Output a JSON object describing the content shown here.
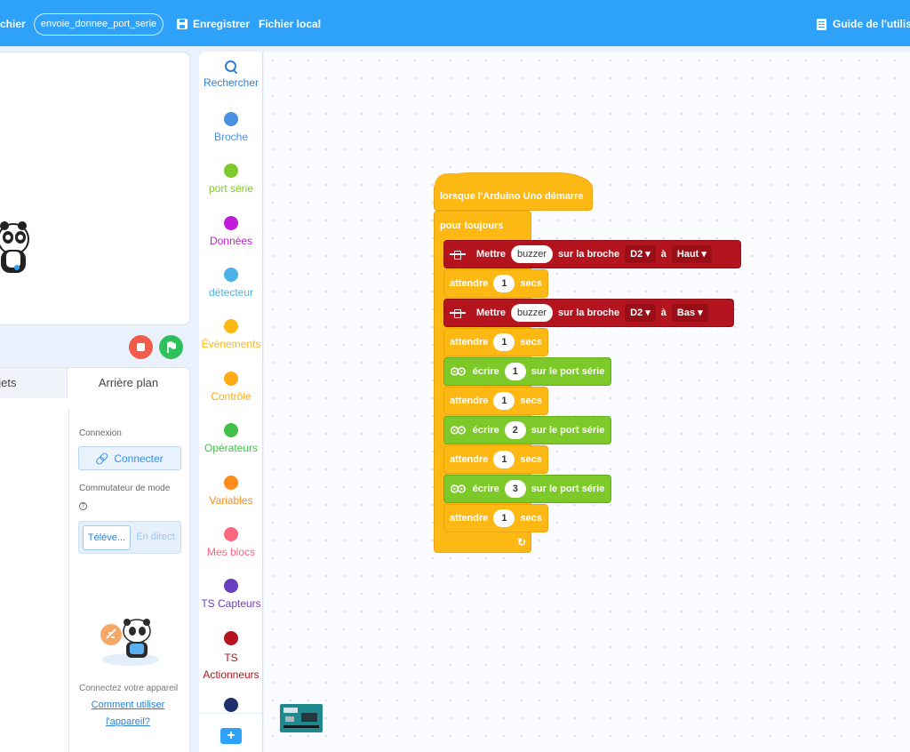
{
  "topbar": {
    "file_menu": "chier",
    "project_name": "envoie_donnee_port_serie",
    "save_label": "Enregistrer",
    "local_file_label": "Fichier local",
    "guide_label": "Guide de l'utilis"
  },
  "tabs": {
    "sprites_label": "bjets",
    "backdrop_label": "Arrière plan"
  },
  "device": {
    "connection_label": "Connexion",
    "connect_button": "Connecter",
    "mode_switch_label": "Commutateur de mode",
    "mode_upload": "Téléve...",
    "mode_live": "En direct",
    "hint": "Connectez votre appareil",
    "help_link_line1": "Comment utiliser",
    "help_link_line2": "l'appareil?"
  },
  "palette": {
    "categories": [
      {
        "label": "Rechercher",
        "color": "#2d7fd4"
      },
      {
        "label": "Broche",
        "color": "#4a90e2"
      },
      {
        "label": "port série",
        "color": "#7dc92a"
      },
      {
        "label": "Données",
        "color": "#c41bd8"
      },
      {
        "label": "détecteur",
        "color": "#4cb3e8"
      },
      {
        "label": "Évènements",
        "color": "#fdb813"
      },
      {
        "label": "Contrôle",
        "color": "#ffab19"
      },
      {
        "label": "Opérateurs",
        "color": "#40bf4a"
      },
      {
        "label": "Variables",
        "color": "#ff8c1a"
      },
      {
        "label": "Mes blocs",
        "color": "#ff6680"
      },
      {
        "label": "TS Capteurs",
        "color": "#6a3fbf"
      },
      {
        "label": "TS",
        "color": "#b3141e"
      },
      {
        "label": "Actionneurs",
        "color": "#b3141e"
      },
      {
        "label": "",
        "color": "#1f2f6b"
      }
    ]
  },
  "blocks": {
    "hat": "lorsque l'Arduino Uno démarre",
    "forever": "pour toujours",
    "set_pin_1": {
      "verb": "Mettre",
      "device": "buzzer",
      "mid": "sur la broche",
      "pin": "D2 ▾",
      "to": "à",
      "level": "Haut ▾"
    },
    "wait_1": {
      "verb": "attendre",
      "value": "1",
      "unit": "secs"
    },
    "set_pin_2": {
      "verb": "Mettre",
      "device": "buzzer",
      "mid": "sur la broche",
      "pin": "D2 ▾",
      "to": "à",
      "level": "Bas ▾"
    },
    "wait_2": {
      "verb": "attendre",
      "value": "1",
      "unit": "secs"
    },
    "serial_1": {
      "verb": "écrire",
      "value": "1",
      "tail": "sur le port série"
    },
    "wait_3": {
      "verb": "attendre",
      "value": "1",
      "unit": "secs"
    },
    "serial_2": {
      "verb": "écrire",
      "value": "2",
      "tail": "sur le port série"
    },
    "wait_4": {
      "verb": "attendre",
      "value": "1",
      "unit": "secs"
    },
    "serial_3": {
      "verb": "écrire",
      "value": "3",
      "tail": "sur le port série"
    },
    "wait_5": {
      "verb": "attendre",
      "value": "1",
      "unit": "secs"
    },
    "loop_arrow": "↻"
  },
  "colors": {
    "topbar": "#2ea2f8",
    "events": "#fdb813",
    "pin_block": "#b3141e",
    "serial_block": "#7dc92a",
    "stop": "#f15b4a",
    "go": "#2ec05a"
  }
}
